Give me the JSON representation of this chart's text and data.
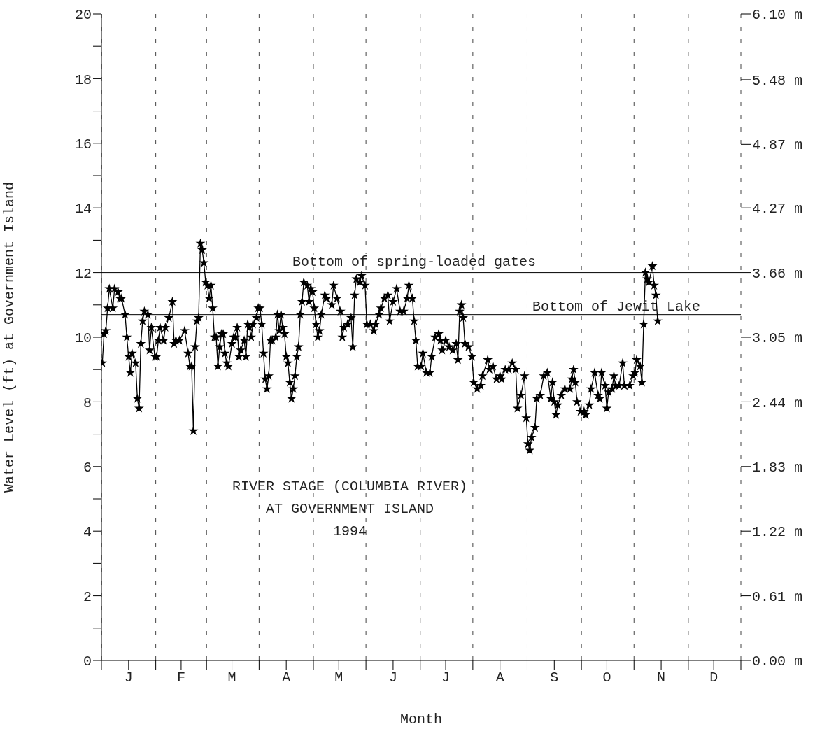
{
  "chart_data": {
    "type": "line",
    "xlabel": "Month",
    "ylabel": "Water Level (ft) at Government Island",
    "annotations": [
      "RIVER STAGE (COLUMBIA RIVER)",
      "AT GOVERNMENT ISLAND",
      "1994"
    ],
    "categories": [
      null,
      null,
      null,
      null,
      null,
      null,
      null,
      null,
      null,
      null,
      null,
      null,
      null,
      null,
      null,
      "J",
      null,
      null,
      null,
      null,
      null,
      null,
      null,
      null,
      null,
      null,
      null,
      null,
      null,
      null,
      null,
      null,
      null,
      null,
      null,
      null,
      null,
      null,
      null,
      null,
      null,
      null,
      null,
      null,
      null,
      "F",
      null,
      null,
      null,
      null,
      null,
      null,
      null,
      null,
      null,
      null,
      null,
      null,
      null,
      null,
      null,
      null,
      null,
      null,
      null,
      null,
      null,
      null,
      null,
      null,
      null,
      null,
      null,
      null,
      "M",
      null,
      null,
      null,
      null,
      null,
      null,
      null,
      null,
      null,
      null,
      null,
      null,
      null,
      null,
      null,
      null,
      null,
      null,
      null,
      null,
      null,
      null,
      null,
      null,
      null,
      null,
      null,
      null,
      null,
      null,
      "A",
      null,
      null,
      null,
      null,
      null,
      null,
      null,
      null,
      null,
      null,
      null,
      null,
      null,
      null,
      null,
      null,
      null,
      null,
      null,
      null,
      null,
      null,
      null,
      null,
      null,
      null,
      null,
      null,
      null,
      "M",
      null,
      null,
      null,
      null,
      null,
      null,
      null,
      null,
      null,
      null,
      null,
      null,
      null,
      null,
      null,
      null,
      null,
      null,
      null,
      null,
      null,
      null,
      null,
      null,
      null,
      null,
      null,
      null,
      null,
      null,
      "J",
      null,
      null,
      null,
      null,
      null,
      null,
      null,
      null,
      null,
      null,
      null,
      null,
      null,
      null,
      null,
      null,
      null,
      null,
      null,
      null,
      null,
      null,
      null,
      null,
      null,
      null,
      null,
      null,
      null,
      "J",
      null,
      null,
      null,
      null,
      null,
      null,
      null,
      null,
      null,
      null,
      null,
      null,
      null,
      null,
      null,
      null,
      null,
      null,
      null,
      null,
      null,
      null,
      null,
      null,
      null,
      null,
      null,
      null,
      null,
      null,
      "A",
      null,
      null,
      null,
      null,
      null,
      null,
      null,
      null,
      null,
      null,
      null,
      null,
      null,
      null,
      null,
      null,
      null,
      null,
      null,
      null,
      null,
      null,
      null,
      null,
      null,
      null,
      null,
      null,
      null,
      null,
      "S",
      null,
      null,
      null,
      null,
      null,
      null,
      null,
      null,
      null,
      null,
      null,
      null,
      null,
      null,
      null,
      null,
      null,
      null,
      null,
      null,
      null,
      null,
      null,
      null,
      null,
      null,
      null,
      null,
      null,
      "O",
      null,
      null,
      null,
      null,
      null,
      null,
      null,
      null,
      null,
      null,
      null,
      null,
      null,
      null,
      null,
      null,
      null,
      null,
      null,
      null,
      null,
      null,
      null,
      null,
      null,
      null,
      null,
      null,
      null,
      null,
      "N",
      null,
      null,
      null,
      null,
      null,
      null,
      null,
      null,
      null,
      null,
      null,
      null,
      null,
      null,
      null,
      null,
      null,
      null,
      null,
      null,
      null,
      null,
      null,
      null,
      null,
      null,
      null,
      null,
      null,
      "D",
      null,
      null,
      null,
      null,
      null,
      null,
      null,
      null,
      null,
      null,
      null,
      null,
      null,
      null,
      null
    ],
    "ylim": [
      0,
      20
    ],
    "yticks": [
      0,
      {
        "value": 1,
        "label": null
      },
      2,
      {
        "value": 3,
        "label": null
      },
      4,
      {
        "value": 5,
        "label": null
      },
      6,
      {
        "value": 7,
        "label": null
      },
      8,
      {
        "value": 9,
        "label": null
      },
      10,
      {
        "value": 11,
        "label": null
      },
      12,
      {
        "value": 13,
        "label": null
      },
      14,
      {
        "value": 15,
        "label": null
      },
      16,
      {
        "value": 17,
        "label": null
      },
      18,
      {
        "value": 19,
        "label": null
      },
      20
    ],
    "y2lim": [
      0,
      6.1
    ],
    "y2ticks": [
      {
        "value": 0,
        "label": "0.00 m"
      },
      {
        "value": 0.61,
        "label": "0.61 m"
      },
      {
        "value": 1.22,
        "label": "1.22 m"
      },
      {
        "value": 1.83,
        "label": "1.83 m"
      },
      {
        "value": 2.44,
        "label": "2.44 m"
      },
      {
        "value": 3.05,
        "label": "3.05 m"
      },
      {
        "value": 3.66,
        "label": "3.66 m"
      },
      {
        "value": 4.27,
        "label": "4.27 m"
      },
      {
        "value": 4.87,
        "label": "4.87 m"
      },
      {
        "value": 5.48,
        "label": "5.48 m"
      },
      {
        "value": 6.1,
        "label": "6.10 m"
      }
    ],
    "grid": true,
    "legend": false,
    "marker": "star",
    "line_style": "solid",
    "ref_lines": [
      {
        "axis": "y",
        "value": 12,
        "label": "Bottom of spring-loaded gates",
        "color": "#000000"
      },
      {
        "axis": "y",
        "value": 10.7,
        "label": "Bottom of Jewit Lake",
        "color": "#000000"
      }
    ],
    "series": [
      {
        "color": "#000000",
        "values": [
          9.2,
          10.1,
          10.2,
          10.9,
          11.5,
          null,
          10.9,
          11.5,
          null,
          11.4,
          11.2,
          11.2,
          null,
          10.7,
          10,
          9.4,
          8.9,
          9.5,
          null,
          9.2,
          8.1,
          7.8,
          9.8,
          10.5,
          10.8,
          null,
          10.7,
          9.6,
          10.3,
          null,
          9.4,
          9.4,
          9.9,
          10.3,
          null,
          9.9,
          10.3,
          null,
          10.6,
          null,
          11.1,
          9.8,
          9.9,
          null,
          9.9,
          null,
          null,
          10.2,
          null,
          9.5,
          9.1,
          9.1,
          7.1,
          9.7,
          10.5,
          10.6,
          12.9,
          12.7,
          12.3,
          11.7,
          11.6,
          11.2,
          11.6,
          10.9,
          10,
          10,
          9.1,
          9.7,
          10.1,
          10.1,
          9.5,
          9.2,
          9.1,
          null,
          9.8,
          10,
          10,
          10.3,
          9.4,
          9.6,
          null,
          9.9,
          9.4,
          10.4,
          10.3,
          10,
          10.4,
          null,
          10.6,
          10.9,
          10.9,
          10.4,
          9.5,
          8.7,
          8.4,
          8.8,
          9.9,
          9.9,
          null,
          10,
          10.7,
          10.2,
          10.7,
          10.3,
          10.1,
          9.4,
          9.2,
          8.6,
          8.1,
          8.4,
          8.8,
          9.4,
          9.7,
          10.7,
          11.1,
          11.7,
          null,
          11.6,
          11.1,
          11.5,
          11.4,
          10.9,
          10.4,
          10,
          10.2,
          10.7,
          null,
          11.3,
          11.2,
          null,
          null,
          11,
          11.6,
          null,
          11.2,
          null,
          10.8,
          10,
          10.3,
          null,
          10.4,
          null,
          10.6,
          9.7,
          11.3,
          11.8,
          null,
          11.7,
          11.9,
          null,
          11.6,
          10.4,
          null,
          10.4,
          null,
          10.2,
          10.4,
          null,
          10.7,
          10.9,
          null,
          11.2,
          null,
          11.3,
          10.5,
          null,
          11.1,
          null,
          11.5,
          null,
          10.8,
          null,
          10.8,
          null,
          11.2,
          11.6,
          null,
          11.2,
          10.5,
          9.9,
          9.1,
          null,
          9.1,
          9.5,
          null,
          8.9,
          null,
          8.9,
          9.4,
          null,
          10,
          null,
          10.1,
          9.9,
          9.6,
          null,
          9.9,
          null,
          9.7,
          null,
          9.6,
          null,
          9.8,
          9.3,
          10.8,
          11,
          10.6,
          9.8,
          null,
          9.7,
          null,
          9.4,
          8.6,
          null,
          8.4,
          null,
          8.5,
          8.8,
          null,
          null,
          9.3,
          9,
          null,
          9.1,
          null,
          8.7,
          null,
          8.8,
          8.7,
          null,
          9,
          null,
          9,
          null,
          9.2,
          null,
          9,
          7.8,
          null,
          8.2,
          null,
          8.8,
          7.5,
          6.7,
          6.5,
          6.9,
          null,
          7.2,
          8.1,
          null,
          8.2,
          null,
          8.8,
          null,
          8.9,
          null,
          8.1,
          8.6,
          8,
          7.6,
          7.9,
          null,
          8.2,
          null,
          8.4,
          null,
          null,
          8.4,
          8.7,
          9,
          8.6,
          8,
          null,
          7.7,
          null,
          7.7,
          7.6,
          null,
          7.9,
          8.4,
          null,
          8.9,
          null,
          8.2,
          8.1,
          8.9,
          null,
          8.5,
          7.8,
          8.3,
          null,
          8.4,
          8.8,
          8.5,
          null,
          8.5,
          null,
          9.2,
          8.5,
          null,
          null,
          8.5,
          null,
          8.8,
          8.9,
          9.3,
          null,
          9.1,
          8.6,
          10.4,
          12,
          11.8,
          11.7,
          null,
          12.2,
          11.6,
          11.3,
          10.5,
          null,
          null,
          null,
          null,
          null,
          null,
          null,
          null,
          null,
          null,
          null,
          null,
          null,
          null,
          null,
          null,
          null,
          null,
          null,
          null,
          null,
          null,
          null,
          null,
          null,
          null,
          null,
          null,
          null,
          null,
          null,
          null,
          null,
          null,
          null,
          null,
          null,
          null,
          null,
          null,
          null,
          null,
          null,
          null,
          null,
          null,
          null
        ]
      }
    ]
  }
}
